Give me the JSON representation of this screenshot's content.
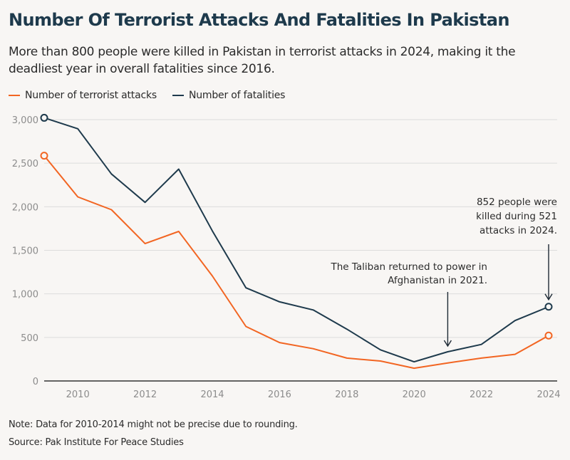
{
  "header": {
    "title": "Number Of Terrorist Attacks And Fatalities In Pakistan",
    "subtitle": "More than 800 people were killed in Pakistan in terrorist attacks in 2024, making it the deadliest year in overall fatalities since 2016."
  },
  "footer": {
    "note": "Note: Data for 2010-2014 might not be precise due to rounding.",
    "source": "Source: Pak Institute For Peace Studies"
  },
  "colors": {
    "attacks": "#f26522",
    "fatalities": "#1e3a4c",
    "grid": "#dcdcdc",
    "axis": "#333333"
  },
  "chart_data": {
    "type": "line",
    "x": [
      2009,
      2010,
      2011,
      2012,
      2013,
      2014,
      2015,
      2016,
      2017,
      2018,
      2019,
      2020,
      2021,
      2022,
      2023,
      2024
    ],
    "x_ticks": [
      2010,
      2012,
      2014,
      2016,
      2018,
      2020,
      2022,
      2024
    ],
    "x_tick_labels": [
      "2010",
      "2012",
      "2014",
      "2016",
      "2018",
      "2020",
      "2022",
      "2024"
    ],
    "y_ticks": [
      0,
      500,
      1000,
      1500,
      2000,
      2500,
      3000
    ],
    "y_tick_labels": [
      "0",
      "500",
      "1,000",
      "1,500",
      "2,000",
      "2,500",
      "3,000"
    ],
    "xlim": [
      2009,
      2024
    ],
    "ylim": [
      0,
      3000
    ],
    "grid": true,
    "legend_position": "top-left",
    "series": [
      {
        "name": "Number of terrorist attacks",
        "color": "#f26522",
        "values": [
          2586,
          2113,
          1966,
          1577,
          1717,
          1206,
          625,
          441,
          370,
          262,
          229,
          146,
          207,
          262,
          306,
          521
        ]
      },
      {
        "name": "Number of fatalities",
        "color": "#1e3a4c",
        "values": [
          3021,
          2895,
          2376,
          2050,
          2432,
          1723,
          1069,
          908,
          815,
          595,
          357,
          220,
          335,
          419,
          693,
          852
        ]
      }
    ],
    "annotations": [
      {
        "lines": [
          "The Taliban returned to power in",
          "Afghanistan in 2021."
        ],
        "x": 2021,
        "series": 1
      },
      {
        "lines": [
          "852 people were",
          "killed during 521",
          "attacks in 2024."
        ],
        "x": 2024,
        "series": 1
      }
    ]
  }
}
